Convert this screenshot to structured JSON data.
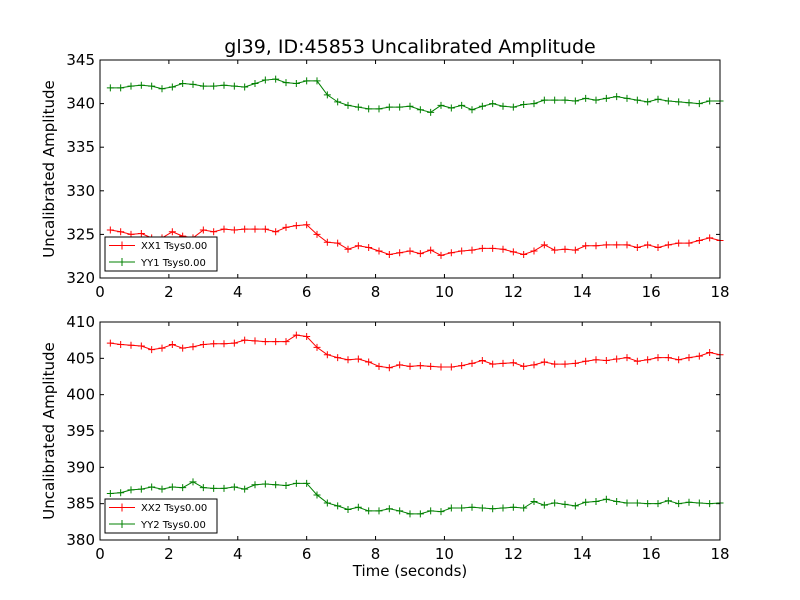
{
  "chart_data": {
    "type": "line",
    "title": "gl39, ID:45853 Uncalibrated Amplitude",
    "xlabel": "Time (seconds)",
    "x": [
      0.3,
      0.6,
      0.9,
      1.2,
      1.5,
      1.8,
      2.1,
      2.4,
      2.7,
      3.0,
      3.3,
      3.6,
      3.9,
      4.2,
      4.5,
      4.8,
      5.1,
      5.4,
      5.7,
      6.0,
      6.3,
      6.6,
      6.9,
      7.2,
      7.5,
      7.8,
      8.1,
      8.4,
      8.7,
      9.0,
      9.3,
      9.6,
      9.9,
      10.2,
      10.5,
      10.8,
      11.1,
      11.4,
      11.7,
      12.0,
      12.3,
      12.6,
      12.9,
      13.2,
      13.5,
      13.8,
      14.1,
      14.4,
      14.7,
      15.0,
      15.3,
      15.6,
      15.9,
      16.2,
      16.5,
      16.8,
      17.1,
      17.4,
      17.7,
      18.0
    ],
    "xlim": [
      0,
      18
    ],
    "xticks": [
      "0",
      "2",
      "4",
      "6",
      "8",
      "10",
      "12",
      "14",
      "16",
      "18"
    ],
    "panels": [
      {
        "ylabel": "Uncalibrated Amplitude",
        "ylim": [
          320,
          345
        ],
        "yticks": [
          "320",
          "325",
          "330",
          "335",
          "340",
          "345"
        ],
        "legend": "lower-left",
        "series": [
          {
            "name": "XX1 Tsys0.00",
            "color": "#ff0000",
            "values": [
              325.5,
              325.3,
              325.0,
              325.1,
              324.6,
              324.6,
              325.3,
              324.8,
              324.6,
              325.5,
              325.3,
              325.6,
              325.5,
              325.6,
              325.6,
              325.6,
              325.3,
              325.8,
              326.0,
              326.1,
              325.0,
              324.1,
              324.0,
              323.3,
              323.7,
              323.5,
              323.1,
              322.7,
              322.9,
              323.1,
              322.8,
              323.2,
              322.6,
              322.9,
              323.1,
              323.2,
              323.4,
              323.4,
              323.3,
              323.0,
              322.7,
              323.1,
              323.8,
              323.2,
              323.3,
              323.2,
              323.7,
              323.7,
              323.8,
              323.8,
              323.8,
              323.5,
              323.8,
              323.5,
              323.8,
              324.0,
              324.0,
              324.3,
              324.6,
              324.3
            ]
          },
          {
            "name": "YY1 Tsys0.00",
            "color": "#008000",
            "values": [
              341.8,
              341.8,
              342.0,
              342.1,
              342.0,
              341.7,
              341.9,
              342.3,
              342.2,
              342.0,
              342.0,
              342.1,
              342.0,
              341.9,
              342.3,
              342.7,
              342.8,
              342.4,
              342.3,
              342.6,
              342.6,
              341.0,
              340.2,
              339.8,
              339.6,
              339.4,
              339.4,
              339.6,
              339.6,
              339.7,
              339.3,
              339.0,
              339.8,
              339.5,
              339.8,
              339.3,
              339.7,
              340.0,
              339.7,
              339.6,
              339.9,
              340.0,
              340.4,
              340.4,
              340.4,
              340.3,
              340.6,
              340.4,
              340.6,
              340.8,
              340.6,
              340.4,
              340.2,
              340.5,
              340.3,
              340.2,
              340.1,
              340.0,
              340.3,
              340.3
            ]
          }
        ]
      },
      {
        "ylabel": "Uncalibrated Amplitude",
        "ylim": [
          380,
          410
        ],
        "yticks": [
          "380",
          "385",
          "390",
          "395",
          "400",
          "405",
          "410"
        ],
        "legend": "lower-left",
        "series": [
          {
            "name": "XX2 Tsys0.00",
            "color": "#ff0000",
            "values": [
              407.1,
              406.9,
              406.8,
              406.7,
              406.2,
              406.4,
              406.9,
              406.4,
              406.6,
              406.9,
              407.0,
              407.0,
              407.1,
              407.5,
              407.4,
              407.3,
              407.3,
              407.3,
              408.2,
              408.0,
              406.5,
              405.5,
              405.1,
              404.8,
              404.9,
              404.5,
              403.9,
              403.7,
              404.1,
              403.9,
              404.0,
              403.9,
              403.8,
              403.8,
              404.0,
              404.3,
              404.7,
              404.2,
              404.3,
              404.4,
              403.9,
              404.1,
              404.5,
              404.2,
              404.2,
              404.3,
              404.6,
              404.8,
              404.7,
              404.9,
              405.1,
              404.6,
              404.8,
              405.1,
              405.1,
              404.8,
              405.1,
              405.3,
              405.8,
              405.5
            ]
          },
          {
            "name": "YY2 Tsys0.00",
            "color": "#008000",
            "values": [
              386.4,
              386.5,
              386.9,
              387.0,
              387.3,
              387.0,
              387.3,
              387.2,
              388.0,
              387.2,
              387.1,
              387.1,
              387.3,
              387.0,
              387.6,
              387.7,
              387.6,
              387.5,
              387.8,
              387.8,
              386.2,
              385.1,
              384.7,
              384.2,
              384.5,
              384.0,
              384.0,
              384.3,
              384.0,
              383.6,
              383.6,
              384.0,
              383.9,
              384.4,
              384.4,
              384.5,
              384.4,
              384.3,
              384.4,
              384.5,
              384.4,
              385.3,
              384.8,
              385.1,
              384.9,
              384.7,
              385.2,
              385.3,
              385.6,
              385.3,
              385.1,
              385.1,
              385.0,
              385.0,
              385.4,
              385.0,
              385.2,
              385.1,
              385.0,
              385.1
            ]
          }
        ]
      }
    ]
  }
}
